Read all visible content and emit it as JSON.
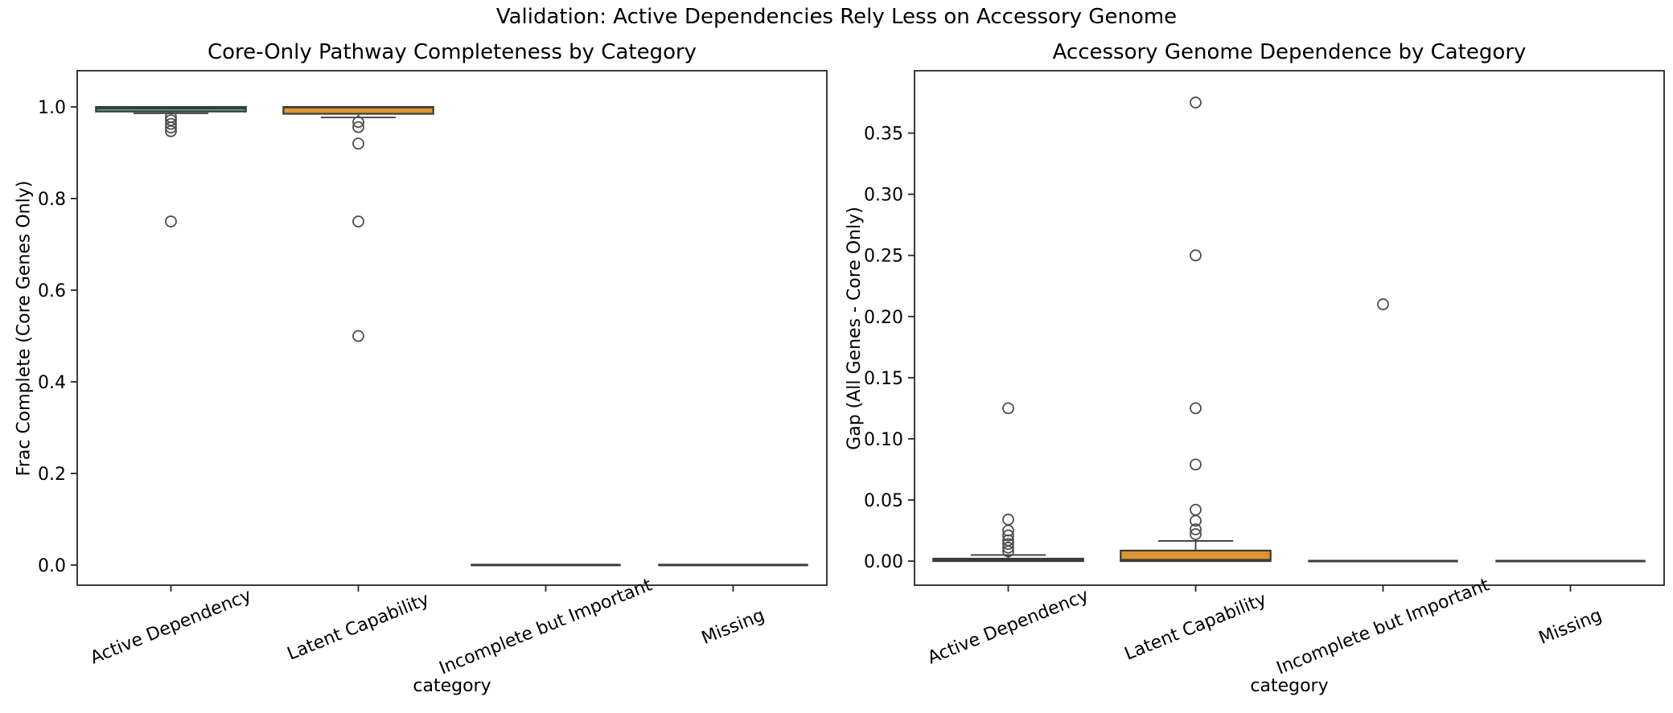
{
  "figure": {
    "suptitle": "Validation: Active Dependencies Rely Less on Accessory Genome",
    "background": "#ffffff",
    "text_color": "#000000",
    "spine_color": "#262626",
    "box_line_color": "#3a3a3a",
    "outlier_color": "#4d4d4d",
    "green_fill": "#4cad73",
    "orange_fill": "#dd9532"
  },
  "chart_data": [
    {
      "type": "box",
      "title": "Core-Only Pathway Completeness by Category",
      "xlabel": "category",
      "ylabel": "Frac Complete (Core Genes Only)",
      "categories": [
        "Active Dependency",
        "Latent Capability",
        "Incomplete but Important",
        "Missing"
      ],
      "ylim": [
        -0.044,
        1.079
      ],
      "yticks": [
        0.0,
        0.2,
        0.4,
        0.6,
        0.8,
        1.0
      ],
      "ytick_labels": [
        "0.0",
        "0.2",
        "0.4",
        "0.6",
        "0.8",
        "1.0"
      ],
      "grid": false,
      "legend": null,
      "boxes": [
        {
          "category": "Active Dependency",
          "color": "#4cad73",
          "q1": 0.99,
          "median": 0.997,
          "q3": 1.0,
          "whisker_low": 0.986,
          "whisker_high": 1.0,
          "outliers": [
            0.978,
            0.971,
            0.963,
            0.955,
            0.947,
            0.75
          ]
        },
        {
          "category": "Latent Capability",
          "color": "#dd9532",
          "q1": 0.985,
          "median": 0.999,
          "q3": 1.0,
          "whisker_low": 0.977,
          "whisker_high": 1.0,
          "outliers": [
            0.967,
            0.956,
            0.92,
            0.75,
            0.5
          ]
        },
        {
          "category": "Incomplete but Important",
          "color": null,
          "q1": 0.0,
          "median": 0.0,
          "q3": 0.0,
          "whisker_low": 0.0,
          "whisker_high": 0.0,
          "outliers": []
        },
        {
          "category": "Missing",
          "color": null,
          "q1": 0.0,
          "median": 0.0,
          "q3": 0.0,
          "whisker_low": 0.0,
          "whisker_high": 0.0,
          "outliers": []
        }
      ]
    },
    {
      "type": "box",
      "title": "Accessory Genome Dependence by Category",
      "xlabel": "category",
      "ylabel": "Gap (All Genes - Core Only)",
      "categories": [
        "Active Dependency",
        "Latent Capability",
        "Incomplete but Important",
        "Missing"
      ],
      "ylim": [
        -0.0197,
        0.401
      ],
      "yticks": [
        0.0,
        0.05,
        0.1,
        0.15,
        0.2,
        0.25,
        0.3,
        0.35
      ],
      "ytick_labels": [
        "0.00",
        "0.05",
        "0.10",
        "0.15",
        "0.20",
        "0.25",
        "0.30",
        "0.35"
      ],
      "grid": false,
      "legend": null,
      "boxes": [
        {
          "category": "Active Dependency",
          "color": "#4cad73",
          "q1": 0.0,
          "median": 0.001,
          "q3": 0.002,
          "whisker_low": 0.0,
          "whisker_high": 0.005,
          "outliers": [
            0.008,
            0.011,
            0.014,
            0.017,
            0.021,
            0.025,
            0.034,
            0.125
          ]
        },
        {
          "category": "Latent Capability",
          "color": "#dd9532",
          "q1": 0.0,
          "median": 0.001,
          "q3": 0.0086,
          "whisker_low": 0.0,
          "whisker_high": 0.0165,
          "outliers": [
            0.022,
            0.026,
            0.033,
            0.042,
            0.079,
            0.125,
            0.25,
            0.375
          ]
        },
        {
          "category": "Incomplete but Important",
          "color": null,
          "q1": 0.0,
          "median": 0.0,
          "q3": 0.0,
          "whisker_low": 0.0,
          "whisker_high": 0.0,
          "outliers": [
            0.21
          ]
        },
        {
          "category": "Missing",
          "color": null,
          "q1": 0.0,
          "median": 0.0,
          "q3": 0.0,
          "whisker_low": 0.0,
          "whisker_high": 0.0,
          "outliers": []
        }
      ]
    }
  ]
}
